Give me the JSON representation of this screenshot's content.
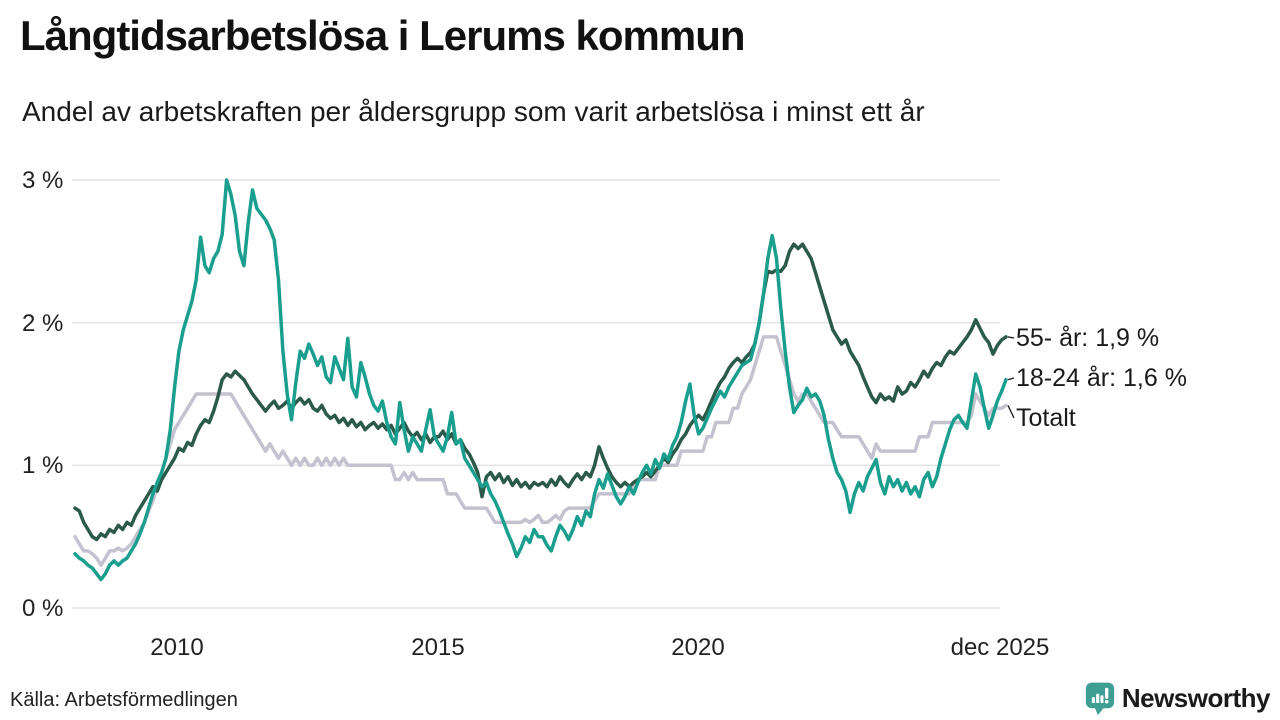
{
  "header": {
    "title": "Långtidsarbetslösa i Lerums kommun",
    "subtitle": "Andel av arbetskraften per åldersgrupp som varit arbetslösa i minst ett år"
  },
  "footer": {
    "source": "Källa: Arbetsförmedlingen",
    "brand": "Newsworthy",
    "brand_icon": "newsworthy-speech-bubble-bar-chart-icon",
    "brand_color": "#3f9e94"
  },
  "chart_data": {
    "type": "line",
    "title": "Långtidsarbetslösa i Lerums kommun",
    "subtitle": "Andel av arbetskraften per åldersgrupp som varit arbetslösa i minst ett år",
    "xlabel": "",
    "ylabel": "",
    "x_unit": "month",
    "x_start": "2008-01",
    "x_end": "2025-12",
    "ylim": [
      0,
      3.15
    ],
    "grid": true,
    "grid_color": "#e3e3e4",
    "legend_position": "right-end-labels",
    "y_ticks": [
      {
        "label": "3 %",
        "value": 3
      },
      {
        "label": "2 %",
        "value": 2
      },
      {
        "label": "1 %",
        "value": 1
      },
      {
        "label": "0 %",
        "value": 0
      }
    ],
    "x_ticks": [
      {
        "label": "2010"
      },
      {
        "label": "2015"
      },
      {
        "label": "2020"
      },
      {
        "label": "dec 2025"
      }
    ],
    "end_labels": [
      {
        "text": "55- år: 1,9 %",
        "series": "55- år"
      },
      {
        "text": "18-24 år: 1,6 %",
        "series": "18-24 år"
      },
      {
        "text": "Totalt",
        "series": "Totalt"
      }
    ],
    "series": [
      {
        "name": "Totalt",
        "color": "#c5c2cf",
        "last_value": 1.42,
        "values": [
          0.5,
          0.45,
          0.4,
          0.4,
          0.38,
          0.35,
          0.3,
          0.35,
          0.4,
          0.4,
          0.42,
          0.4,
          0.42,
          0.45,
          0.5,
          0.55,
          0.6,
          0.68,
          0.75,
          0.85,
          0.95,
          1.05,
          1.15,
          1.25,
          1.3,
          1.35,
          1.4,
          1.45,
          1.5,
          1.5,
          1.5,
          1.5,
          1.5,
          1.5,
          1.5,
          1.5,
          1.5,
          1.45,
          1.4,
          1.35,
          1.3,
          1.25,
          1.2,
          1.15,
          1.1,
          1.15,
          1.1,
          1.05,
          1.1,
          1.05,
          1.0,
          1.05,
          1.0,
          1.05,
          1.0,
          1.0,
          1.05,
          1.0,
          1.05,
          1.0,
          1.05,
          1.0,
          1.05,
          1.0,
          1.0,
          1.0,
          1.0,
          1.0,
          1.0,
          1.0,
          1.0,
          1.0,
          1.0,
          1.0,
          0.9,
          0.9,
          0.95,
          0.9,
          0.95,
          0.9,
          0.9,
          0.9,
          0.9,
          0.9,
          0.9,
          0.9,
          0.8,
          0.8,
          0.8,
          0.75,
          0.7,
          0.7,
          0.7,
          0.7,
          0.7,
          0.7,
          0.65,
          0.6,
          0.6,
          0.6,
          0.6,
          0.6,
          0.6,
          0.6,
          0.62,
          0.6,
          0.62,
          0.65,
          0.6,
          0.6,
          0.62,
          0.65,
          0.62,
          0.68,
          0.7,
          0.7,
          0.7,
          0.7,
          0.7,
          0.7,
          0.75,
          0.8,
          0.8,
          0.8,
          0.8,
          0.8,
          0.8,
          0.8,
          0.8,
          0.85,
          0.9,
          0.9,
          0.9,
          0.9,
          0.9,
          1.0,
          1.0,
          1.0,
          1.0,
          1.0,
          1.1,
          1.1,
          1.1,
          1.1,
          1.1,
          1.1,
          1.2,
          1.2,
          1.3,
          1.3,
          1.3,
          1.3,
          1.4,
          1.4,
          1.5,
          1.55,
          1.6,
          1.7,
          1.8,
          1.9,
          1.9,
          1.9,
          1.9,
          1.8,
          1.7,
          1.6,
          1.5,
          1.45,
          1.5,
          1.5,
          1.45,
          1.4,
          1.35,
          1.3,
          1.3,
          1.3,
          1.25,
          1.2,
          1.2,
          1.2,
          1.2,
          1.2,
          1.15,
          1.1,
          1.05,
          1.15,
          1.1,
          1.1,
          1.1,
          1.1,
          1.1,
          1.1,
          1.1,
          1.1,
          1.1,
          1.2,
          1.2,
          1.2,
          1.3,
          1.3,
          1.3,
          1.3,
          1.3,
          1.3,
          1.3,
          1.3,
          1.3,
          1.35,
          1.5,
          1.45,
          1.4,
          1.35,
          1.4,
          1.4,
          1.4,
          1.42
        ]
      },
      {
        "name": "55- år",
        "color": "#2b5a4a",
        "last_value": 1.9,
        "values": [
          0.7,
          0.68,
          0.6,
          0.55,
          0.5,
          0.48,
          0.52,
          0.5,
          0.55,
          0.53,
          0.58,
          0.55,
          0.6,
          0.58,
          0.65,
          0.7,
          0.75,
          0.8,
          0.85,
          0.82,
          0.9,
          0.95,
          1.0,
          1.05,
          1.12,
          1.1,
          1.16,
          1.14,
          1.22,
          1.28,
          1.32,
          1.3,
          1.38,
          1.48,
          1.6,
          1.64,
          1.62,
          1.66,
          1.63,
          1.6,
          1.55,
          1.5,
          1.46,
          1.42,
          1.38,
          1.42,
          1.45,
          1.4,
          1.42,
          1.45,
          1.4,
          1.44,
          1.47,
          1.43,
          1.46,
          1.4,
          1.38,
          1.42,
          1.36,
          1.33,
          1.35,
          1.3,
          1.33,
          1.28,
          1.32,
          1.27,
          1.3,
          1.25,
          1.28,
          1.3,
          1.26,
          1.29,
          1.25,
          1.28,
          1.22,
          1.26,
          1.3,
          1.24,
          1.2,
          1.23,
          1.18,
          1.22,
          1.16,
          1.2,
          1.2,
          1.24,
          1.18,
          1.22,
          1.15,
          1.18,
          1.12,
          1.08,
          1.02,
          0.95,
          0.78,
          0.92,
          0.95,
          0.9,
          0.94,
          0.88,
          0.92,
          0.86,
          0.9,
          0.85,
          0.88,
          0.84,
          0.88,
          0.86,
          0.88,
          0.85,
          0.9,
          0.86,
          0.92,
          0.88,
          0.85,
          0.9,
          0.94,
          0.9,
          0.95,
          0.92,
          1.0,
          1.13,
          1.05,
          0.98,
          0.92,
          0.88,
          0.85,
          0.88,
          0.85,
          0.88,
          0.9,
          0.92,
          0.95,
          0.92,
          0.96,
          1.0,
          1.05,
          1.02,
          1.08,
          1.12,
          1.18,
          1.22,
          1.28,
          1.32,
          1.35,
          1.32,
          1.38,
          1.45,
          1.52,
          1.58,
          1.62,
          1.68,
          1.72,
          1.75,
          1.72,
          1.76,
          1.79,
          1.85,
          2.0,
          2.2,
          2.36,
          2.35,
          2.37,
          2.36,
          2.4,
          2.5,
          2.55,
          2.52,
          2.55,
          2.5,
          2.45,
          2.35,
          2.25,
          2.15,
          2.05,
          1.95,
          1.9,
          1.85,
          1.88,
          1.8,
          1.75,
          1.7,
          1.62,
          1.55,
          1.48,
          1.44,
          1.5,
          1.46,
          1.48,
          1.45,
          1.55,
          1.5,
          1.52,
          1.58,
          1.55,
          1.6,
          1.66,
          1.62,
          1.68,
          1.72,
          1.7,
          1.76,
          1.8,
          1.78,
          1.82,
          1.86,
          1.9,
          1.95,
          2.02,
          1.96,
          1.9,
          1.86,
          1.78,
          1.84,
          1.88,
          1.9
        ]
      },
      {
        "name": "18-24 år",
        "color": "#1a9e8e",
        "last_value": 1.6,
        "values": [
          0.38,
          0.35,
          0.33,
          0.3,
          0.28,
          0.24,
          0.2,
          0.24,
          0.3,
          0.33,
          0.3,
          0.33,
          0.35,
          0.4,
          0.45,
          0.52,
          0.6,
          0.7,
          0.8,
          0.88,
          0.95,
          1.05,
          1.25,
          1.55,
          1.8,
          1.95,
          2.05,
          2.15,
          2.3,
          2.6,
          2.4,
          2.35,
          2.45,
          2.5,
          2.62,
          3.0,
          2.9,
          2.75,
          2.5,
          2.4,
          2.7,
          2.93,
          2.8,
          2.76,
          2.72,
          2.66,
          2.58,
          2.3,
          1.8,
          1.5,
          1.32,
          1.58,
          1.8,
          1.75,
          1.85,
          1.78,
          1.7,
          1.76,
          1.62,
          1.58,
          1.76,
          1.68,
          1.6,
          1.89,
          1.55,
          1.48,
          1.72,
          1.62,
          1.5,
          1.42,
          1.38,
          1.45,
          1.3,
          1.2,
          1.15,
          1.44,
          1.25,
          1.1,
          1.2,
          1.15,
          1.1,
          1.25,
          1.39,
          1.2,
          1.15,
          1.1,
          1.2,
          1.37,
          1.15,
          1.18,
          1.05,
          1.0,
          0.95,
          0.9,
          0.85,
          0.88,
          0.8,
          0.75,
          0.68,
          0.6,
          0.52,
          0.45,
          0.36,
          0.42,
          0.5,
          0.46,
          0.55,
          0.5,
          0.5,
          0.44,
          0.4,
          0.5,
          0.58,
          0.54,
          0.48,
          0.55,
          0.64,
          0.58,
          0.68,
          0.64,
          0.8,
          0.9,
          0.84,
          0.94,
          0.86,
          0.78,
          0.73,
          0.78,
          0.85,
          0.8,
          0.88,
          0.95,
          1.0,
          0.94,
          1.04,
          0.98,
          1.08,
          1.04,
          1.14,
          1.2,
          1.3,
          1.45,
          1.57,
          1.35,
          1.22,
          1.26,
          1.33,
          1.4,
          1.46,
          1.52,
          1.48,
          1.55,
          1.6,
          1.65,
          1.7,
          1.72,
          1.74,
          1.85,
          2.0,
          2.2,
          2.45,
          2.61,
          2.45,
          2.1,
          1.8,
          1.55,
          1.37,
          1.42,
          1.46,
          1.54,
          1.48,
          1.5,
          1.45,
          1.35,
          1.18,
          1.05,
          0.95,
          0.9,
          0.82,
          0.67,
          0.8,
          0.88,
          0.82,
          0.92,
          0.98,
          1.04,
          0.88,
          0.8,
          0.92,
          0.85,
          0.9,
          0.82,
          0.88,
          0.8,
          0.85,
          0.78,
          0.9,
          0.95,
          0.85,
          0.92,
          1.05,
          1.15,
          1.25,
          1.32,
          1.35,
          1.3,
          1.26,
          1.45,
          1.64,
          1.55,
          1.4,
          1.26,
          1.35,
          1.45,
          1.52,
          1.6
        ]
      }
    ]
  }
}
